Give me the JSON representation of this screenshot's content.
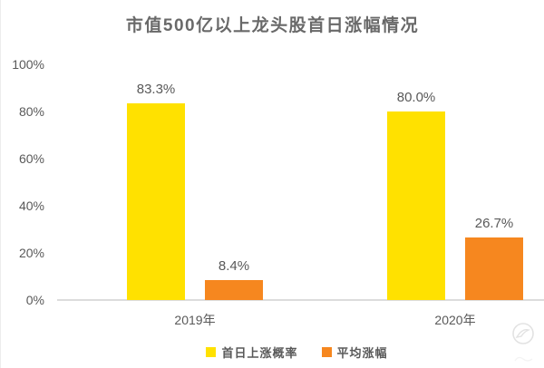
{
  "chart_data": {
    "type": "bar",
    "title": "市值500亿以上龙头股首日涨幅情况",
    "categories": [
      "2019年",
      "2020年"
    ],
    "series": [
      {
        "name": "首日上涨概率",
        "color": "#FFE100",
        "values": [
          83.3,
          80.0
        ],
        "labels": [
          "83.3%",
          "80.0%"
        ]
      },
      {
        "name": "平均涨幅",
        "color": "#F6871F",
        "values": [
          8.4,
          26.7
        ],
        "labels": [
          "8.4%",
          "26.7%"
        ]
      }
    ],
    "ylabel": "",
    "xlabel": "",
    "ylim": [
      0,
      100
    ],
    "yticks": [
      "0%",
      "20%",
      "40%",
      "60%",
      "80%",
      "100%"
    ],
    "grid": "off",
    "legend_position": "bottom",
    "label_color": "#595959",
    "axis_line_color": "#dcdcdc"
  },
  "watermark": {
    "icon": "circular-logo-watermark"
  }
}
